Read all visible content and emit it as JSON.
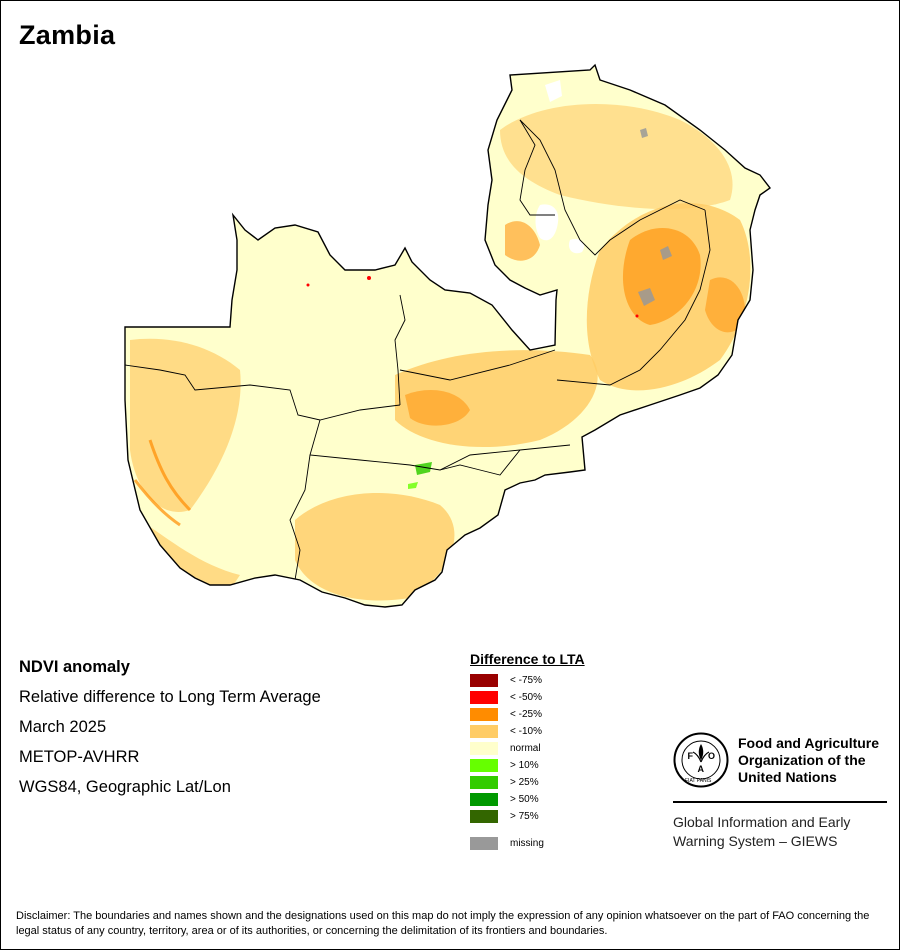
{
  "title": "Zambia",
  "info": {
    "product": "NDVI anomaly",
    "description": "Relative difference to Long Term Average",
    "date": "March 2025",
    "sensor": "METOP-AVHRR",
    "projection": "WGS84, Geographic Lat/Lon"
  },
  "legend": {
    "title": "Difference to LTA",
    "items": [
      {
        "label": "< -75%",
        "color": "#990000"
      },
      {
        "label": "< -50%",
        "color": "#ff0000"
      },
      {
        "label": "< -25%",
        "color": "#ff8c00"
      },
      {
        "label": "< -10%",
        "color": "#ffcc66"
      },
      {
        "label": "normal",
        "color": "#ffffcc"
      },
      {
        "label": "> 10%",
        "color": "#66ff00"
      },
      {
        "label": "> 25%",
        "color": "#33cc00"
      },
      {
        "label": "> 50%",
        "color": "#009900"
      },
      {
        "label": "> 75%",
        "color": "#336600"
      }
    ],
    "missing": {
      "label": "missing",
      "color": "#999999"
    }
  },
  "organization": {
    "name_lines": [
      "Food and Agriculture",
      "Organization of the",
      "United Nations"
    ],
    "logo_text": "FAO",
    "logo_motto": "FIAT PANIS",
    "system_lines": [
      "Global Information and Early",
      "Warning System – GIEWS"
    ]
  },
  "disclaimer": "Disclaimer: The boundaries and names shown and the designations used on this map do not imply the expression of any opinion whatsoever on the part of FAO concerning the legal status of any country, territory, area or of its authorities, or concerning the delimitation of its frontiers and boundaries."
}
